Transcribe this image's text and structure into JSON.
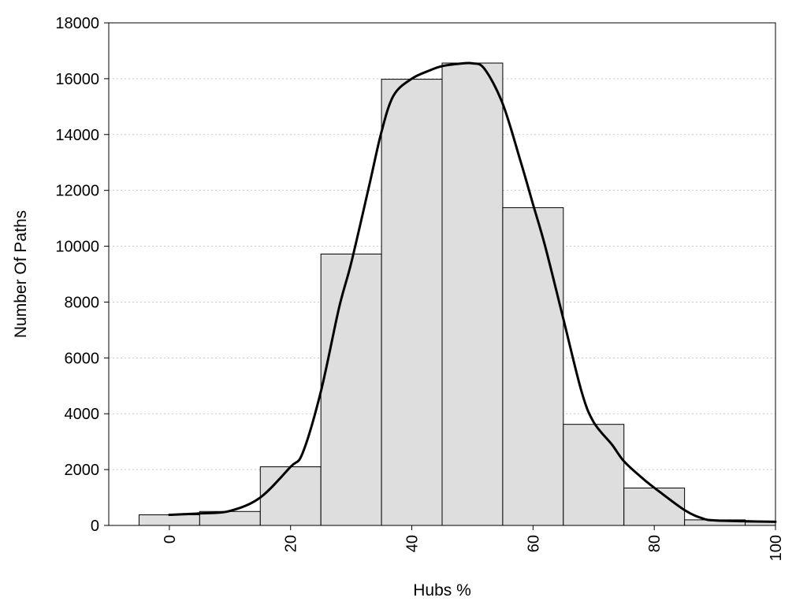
{
  "chart_data": {
    "type": "bar",
    "title": "",
    "xlabel": "Hubs %",
    "ylabel": "Number Of Paths",
    "xlim": [
      -10,
      100
    ],
    "ylim": [
      0,
      18000
    ],
    "x_ticks": [
      "0",
      "20",
      "40",
      "60",
      "80",
      "100"
    ],
    "y_ticks": [
      "0",
      "2000",
      "4000",
      "6000",
      "8000",
      "10000",
      "12000",
      "14000",
      "16000",
      "18000"
    ],
    "grid": "horizontal dotted",
    "bar_width": 10,
    "bar_color": "#dedede",
    "line_color": "#000000",
    "bars": [
      {
        "x": 0,
        "value": 380
      },
      {
        "x": 10,
        "value": 500
      },
      {
        "x": 20,
        "value": 2100
      },
      {
        "x": 30,
        "value": 9720
      },
      {
        "x": 40,
        "value": 15980
      },
      {
        "x": 50,
        "value": 16560
      },
      {
        "x": 60,
        "value": 11380
      },
      {
        "x": 70,
        "value": 3620
      },
      {
        "x": 80,
        "value": 1340
      },
      {
        "x": 90,
        "value": 200
      },
      {
        "x": 100,
        "value": 120
      }
    ],
    "curve": {
      "x": [
        0,
        5,
        10,
        15,
        20,
        22,
        25,
        28,
        30,
        33,
        35,
        37,
        40,
        43,
        45,
        48,
        50,
        52,
        55,
        58,
        60,
        62,
        65,
        68,
        70,
        73,
        75,
        78,
        80,
        85,
        88,
        90,
        95,
        100
      ],
      "y": [
        380,
        430,
        520,
        1000,
        2100,
        2600,
        4800,
        7800,
        9400,
        12200,
        14100,
        15400,
        16000,
        16300,
        16450,
        16540,
        16550,
        16350,
        15100,
        13000,
        11500,
        10000,
        7400,
        4800,
        3700,
        2900,
        2300,
        1700,
        1350,
        550,
        250,
        180,
        150,
        130
      ]
    }
  }
}
